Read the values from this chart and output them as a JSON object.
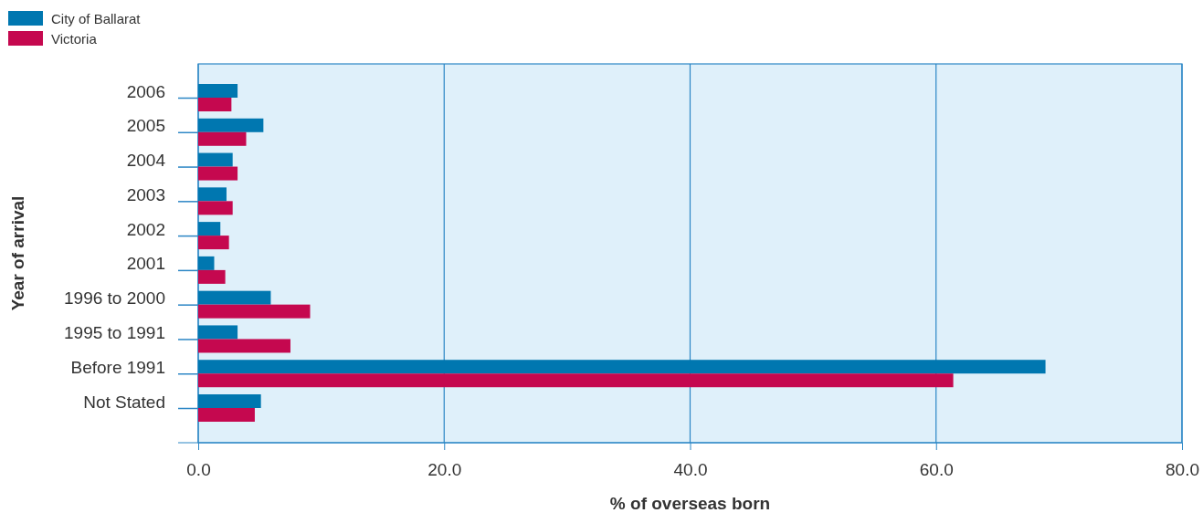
{
  "chart_data": {
    "type": "bar",
    "orientation": "horizontal",
    "xlabel": "% of overseas born",
    "ylabel": "Year of arrival",
    "categories": [
      "2006",
      "2005",
      "2004",
      "2003",
      "2002",
      "2001",
      "1996 to 2000",
      "1995 to 1991",
      "Before 1991",
      "Not Stated"
    ],
    "series": [
      {
        "name": "City of Ballarat",
        "color": "#0077b0",
        "values": [
          3.2,
          5.3,
          2.8,
          2.3,
          1.8,
          1.3,
          5.9,
          3.2,
          68.9,
          5.1
        ]
      },
      {
        "name": "Victoria",
        "color": "#c5084f",
        "values": [
          2.7,
          3.9,
          3.2,
          2.8,
          2.5,
          2.2,
          9.1,
          7.5,
          61.4,
          4.6
        ]
      }
    ],
    "xlim": [
      0,
      80
    ],
    "xticks": [
      {
        "value": 0,
        "label": "0.0"
      },
      {
        "value": 20,
        "label": "20.0"
      },
      {
        "value": 40,
        "label": "40.0"
      },
      {
        "value": 60,
        "label": "60.0"
      },
      {
        "value": 80,
        "label": "80.0"
      }
    ],
    "grid": "x",
    "legend": "top left"
  }
}
